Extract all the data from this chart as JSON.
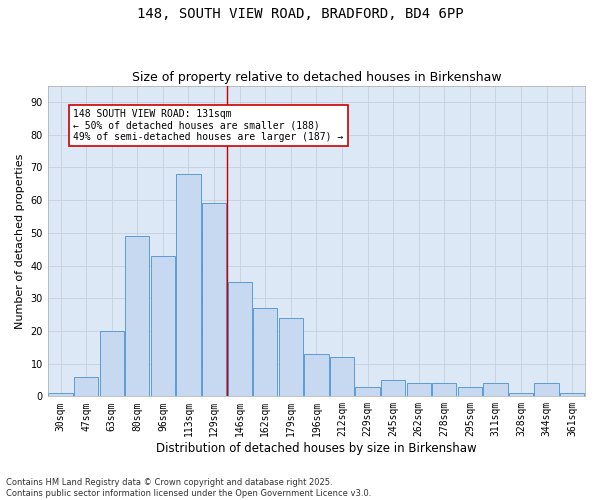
{
  "title1": "148, SOUTH VIEW ROAD, BRADFORD, BD4 6PP",
  "title2": "Size of property relative to detached houses in Birkenshaw",
  "xlabel": "Distribution of detached houses by size in Birkenshaw",
  "ylabel": "Number of detached properties",
  "categories": [
    "30sqm",
    "47sqm",
    "63sqm",
    "80sqm",
    "96sqm",
    "113sqm",
    "129sqm",
    "146sqm",
    "162sqm",
    "179sqm",
    "196sqm",
    "212sqm",
    "229sqm",
    "245sqm",
    "262sqm",
    "278sqm",
    "295sqm",
    "311sqm",
    "328sqm",
    "344sqm",
    "361sqm"
  ],
  "values": [
    1,
    6,
    20,
    49,
    43,
    68,
    59,
    35,
    27,
    24,
    13,
    12,
    3,
    5,
    4,
    4,
    3,
    4,
    1,
    4,
    1
  ],
  "bar_color": "#c6d9f0",
  "bar_edge_color": "#5b9bd5",
  "vline_x": 6.5,
  "annotation_line1": "148 SOUTH VIEW ROAD: 131sqm",
  "annotation_line2": "← 50% of detached houses are smaller (188)",
  "annotation_line3": "49% of semi-detached houses are larger (187) →",
  "annotation_box_color": "#ffffff",
  "annotation_box_edge": "#cc0000",
  "vline_color": "#cc0000",
  "background_color": "#ffffff",
  "grid_color": "#c8d0dc",
  "plot_bg_color": "#dce8f5",
  "ylim": [
    0,
    95
  ],
  "yticks": [
    0,
    10,
    20,
    30,
    40,
    50,
    60,
    70,
    80,
    90
  ],
  "footer1": "Contains HM Land Registry data © Crown copyright and database right 2025.",
  "footer2": "Contains public sector information licensed under the Open Government Licence v3.0.",
  "title_fontsize": 10,
  "subtitle_fontsize": 9,
  "tick_fontsize": 7,
  "ylabel_fontsize": 8,
  "xlabel_fontsize": 8.5,
  "annot_fontsize": 7,
  "footer_fontsize": 6
}
